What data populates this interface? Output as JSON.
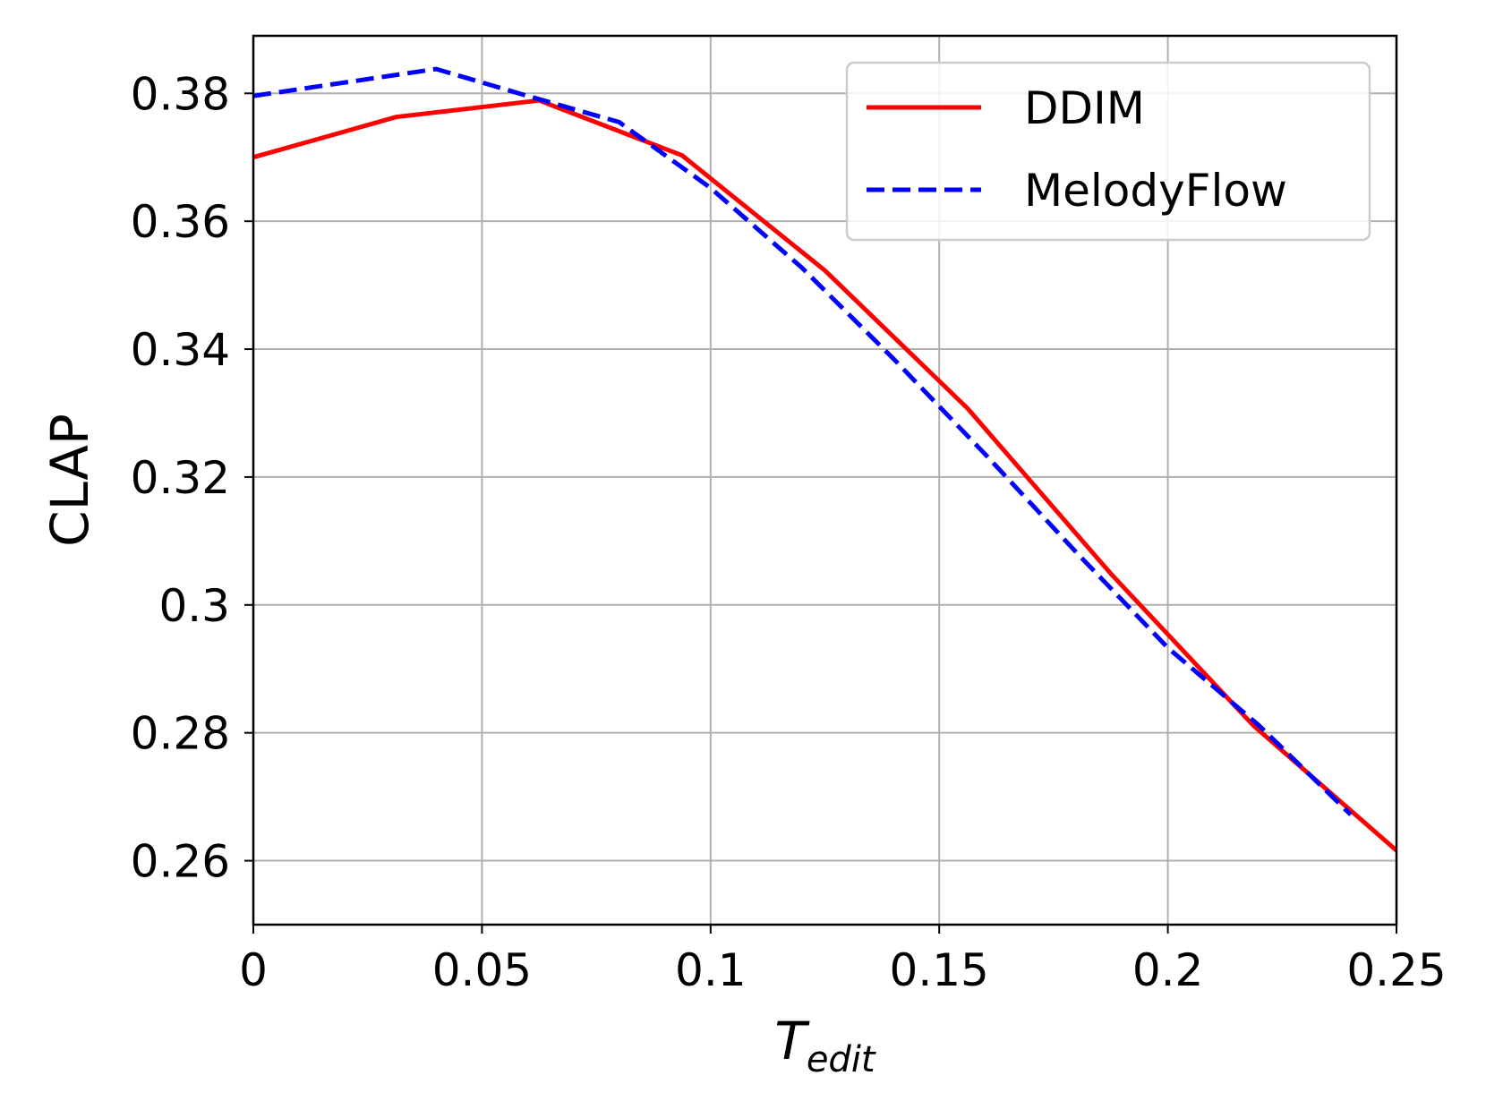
{
  "chart_data": {
    "type": "line",
    "title": "",
    "xlabel": "T",
    "xlabel_subscript": "edit",
    "ylabel": "CLAP",
    "xlim": [
      0,
      0.25
    ],
    "ylim": [
      0.25,
      0.389
    ],
    "xticks": [
      0,
      0.05,
      0.1,
      0.15,
      0.2,
      0.25
    ],
    "xtick_labels": [
      "0",
      "0.05",
      "0.1",
      "0.15",
      "0.2",
      "0.25"
    ],
    "yticks": [
      0.26,
      0.28,
      0.3,
      0.32,
      0.34,
      0.36,
      0.38
    ],
    "ytick_labels": [
      "0.26",
      "0.28",
      "0.3",
      "0.32",
      "0.34",
      "0.36",
      "0.38"
    ],
    "grid": true,
    "legend_position": "top-right",
    "series": [
      {
        "name": "DDIM",
        "color": "#ff0000",
        "style": "solid",
        "x": [
          0,
          0.03125,
          0.0625,
          0.09375,
          0.125,
          0.15625,
          0.1875,
          0.21875,
          0.25
        ],
        "y": [
          0.37,
          0.3763,
          0.3789,
          0.3703,
          0.3523,
          0.3307,
          0.3049,
          0.2811,
          0.2616
        ]
      },
      {
        "name": "MelodyFlow",
        "color": "#0000ff",
        "style": "dashed",
        "x": [
          0,
          0.04,
          0.06,
          0.08,
          0.1,
          0.12,
          0.14,
          0.16,
          0.18,
          0.2,
          0.22,
          0.24
        ],
        "y": [
          0.3796,
          0.3838,
          0.3796,
          0.3755,
          0.3652,
          0.3527,
          0.3385,
          0.3236,
          0.3082,
          0.2933,
          0.2811,
          0.2672
        ]
      }
    ]
  }
}
